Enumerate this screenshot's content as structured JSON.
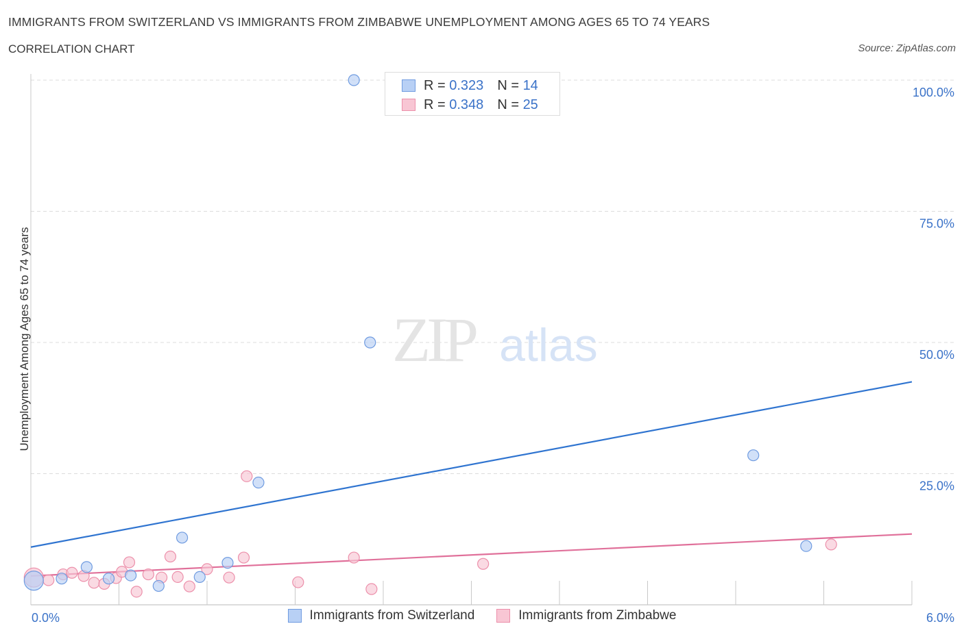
{
  "title": "IMMIGRANTS FROM SWITZERLAND VS IMMIGRANTS FROM ZIMBABWE UNEMPLOYMENT AMONG AGES 65 TO 74 YEARS",
  "subtitle": "CORRELATION CHART",
  "source": "Source: ZipAtlas.com",
  "watermark": {
    "zip": "ZIP",
    "atlas": "atlas"
  },
  "legend": {
    "r_label": "R =",
    "n_label": "N =",
    "rows": [
      {
        "r": "0.323",
        "n": "14"
      },
      {
        "r": "0.348",
        "n": "25"
      }
    ]
  },
  "bottom_legend": [
    "Immigrants from Switzerland",
    "Immigrants from Zimbabwe"
  ],
  "colors": {
    "switzerland_fill": "#b8d0f5",
    "switzerland_stroke": "#6f9be0",
    "switzerland_line": "#2f74d0",
    "zimbabwe_fill": "#f8c6d4",
    "zimbabwe_stroke": "#ec8faa",
    "zimbabwe_line": "#e0709a",
    "tick_label": "#3a72c8",
    "grid": "#dcdcdc"
  },
  "chart_data": {
    "type": "scatter",
    "title": "IMMIGRANTS FROM SWITZERLAND VS IMMIGRANTS FROM ZIMBABWE UNEMPLOYMENT AMONG AGES 65 TO 74 YEARS",
    "subtitle": "CORRELATION CHART",
    "xlabel": "",
    "ylabel": "Unemployment Among Ages 65 to 74 years",
    "xlim": [
      0,
      6
    ],
    "ylim": [
      0,
      100
    ],
    "x_tick_labels": [
      "0.0%",
      "6.0%"
    ],
    "y_tick_labels": [
      "100.0%",
      "75.0%",
      "50.0%",
      "25.0%"
    ],
    "y_ticks": [
      100,
      75,
      50,
      25
    ],
    "grid": true,
    "legend_position": "top-center",
    "series": [
      {
        "name": "Immigrants from Switzerland",
        "r": 0.323,
        "n": 14,
        "points": [
          {
            "x": 0.02,
            "y": 4.6,
            "big": true
          },
          {
            "x": 0.21,
            "y": 5.0
          },
          {
            "x": 0.38,
            "y": 7.2
          },
          {
            "x": 0.53,
            "y": 5.0
          },
          {
            "x": 0.68,
            "y": 5.6
          },
          {
            "x": 0.87,
            "y": 3.6
          },
          {
            "x": 1.03,
            "y": 12.8
          },
          {
            "x": 1.15,
            "y": 5.3
          },
          {
            "x": 1.34,
            "y": 8.0
          },
          {
            "x": 1.55,
            "y": 23.3
          },
          {
            "x": 2.2,
            "y": 100.0
          },
          {
            "x": 2.31,
            "y": 50.0
          },
          {
            "x": 4.92,
            "y": 28.5
          },
          {
            "x": 5.28,
            "y": 11.2
          }
        ],
        "trend": [
          {
            "x": 0,
            "y": 11.0
          },
          {
            "x": 6,
            "y": 42.5
          }
        ]
      },
      {
        "name": "Immigrants from Zimbabwe",
        "r": 0.348,
        "n": 25,
        "points": [
          {
            "x": 0.02,
            "y": 5.2,
            "big": true
          },
          {
            "x": 0.12,
            "y": 4.7
          },
          {
            "x": 0.22,
            "y": 5.8
          },
          {
            "x": 0.28,
            "y": 6.1
          },
          {
            "x": 0.36,
            "y": 5.5
          },
          {
            "x": 0.43,
            "y": 4.2
          },
          {
            "x": 0.5,
            "y": 4.0
          },
          {
            "x": 0.58,
            "y": 5.1
          },
          {
            "x": 0.62,
            "y": 6.3
          },
          {
            "x": 0.67,
            "y": 8.1
          },
          {
            "x": 0.72,
            "y": 2.5
          },
          {
            "x": 0.8,
            "y": 5.8
          },
          {
            "x": 0.89,
            "y": 5.2
          },
          {
            "x": 0.95,
            "y": 9.2
          },
          {
            "x": 1.0,
            "y": 5.3
          },
          {
            "x": 1.08,
            "y": 3.5
          },
          {
            "x": 1.2,
            "y": 6.8
          },
          {
            "x": 1.35,
            "y": 5.2
          },
          {
            "x": 1.45,
            "y": 9.0
          },
          {
            "x": 1.47,
            "y": 24.5
          },
          {
            "x": 1.82,
            "y": 4.3
          },
          {
            "x": 2.2,
            "y": 9.0
          },
          {
            "x": 2.32,
            "y": 3.0
          },
          {
            "x": 3.08,
            "y": 7.8
          },
          {
            "x": 5.45,
            "y": 11.5
          }
        ],
        "trend": [
          {
            "x": 0,
            "y": 5.5
          },
          {
            "x": 6,
            "y": 13.5
          }
        ]
      }
    ]
  }
}
